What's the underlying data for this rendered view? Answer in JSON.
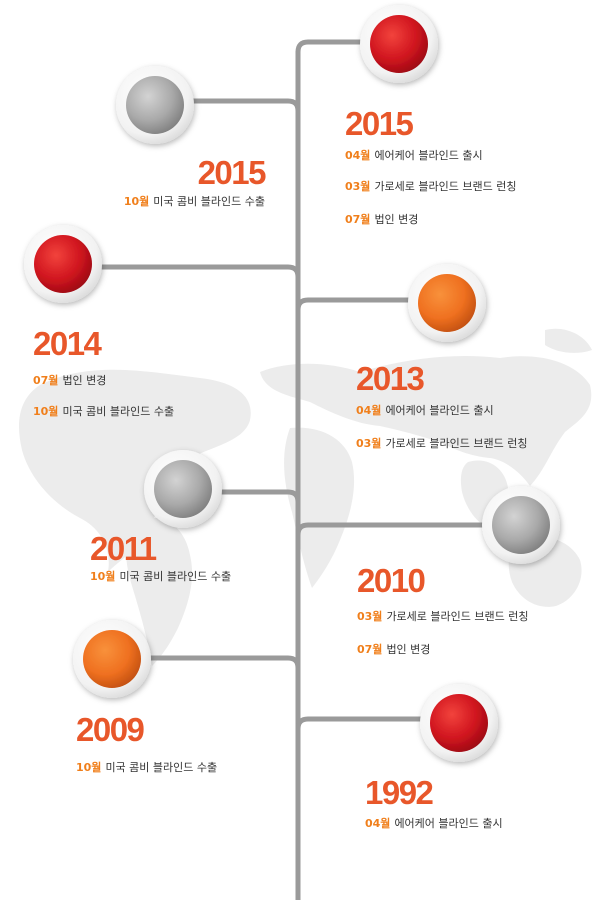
{
  "colors": {
    "accent_text": "#e8572a",
    "month_text": "#f07f1b",
    "line": "#9a9a9a",
    "map": "#ececec",
    "node_red": "#d0151f",
    "node_orange": "#ef7020",
    "node_gray": "#a9a9a9"
  },
  "timeline": [
    {
      "year": "2015",
      "node_color": "red",
      "events": [
        {
          "month": "04월",
          "text": "에어케어 블라인드 출시"
        },
        {
          "month": "03월",
          "text": "가로세로 블라인드 브랜드 런칭"
        },
        {
          "month": "07월",
          "text": "법인 변경"
        }
      ]
    },
    {
      "year": "2015",
      "node_color": "gray",
      "events": [
        {
          "month": "10월",
          "text": "미국 콤비 블라인드 수출"
        }
      ]
    },
    {
      "year": "2014",
      "node_color": "red",
      "events": [
        {
          "month": "07월",
          "text": "법인 변경"
        },
        {
          "month": "10월",
          "text": "미국 콤비 블라인드 수출"
        }
      ]
    },
    {
      "year": "2013",
      "node_color": "orange",
      "events": [
        {
          "month": "04월",
          "text": "에어케어 블라인드 출시"
        },
        {
          "month": "03월",
          "text": "가로세로 블라인드 브랜드 런칭"
        }
      ]
    },
    {
      "year": "2011",
      "node_color": "gray",
      "events": [
        {
          "month": "10월",
          "text": "미국 콤비 블라인드 수출"
        }
      ]
    },
    {
      "year": "2010",
      "node_color": "gray",
      "events": [
        {
          "month": "03월",
          "text": "가로세로 블라인드 브랜드 런칭"
        },
        {
          "month": "07월",
          "text": "법인 변경"
        }
      ]
    },
    {
      "year": "2009",
      "node_color": "orange",
      "events": [
        {
          "month": "10월",
          "text": "미국 콤비 블라인드 수출"
        }
      ]
    },
    {
      "year": "1992",
      "node_color": "red",
      "events": [
        {
          "month": "04월",
          "text": "에어케어 블라인드 출시"
        }
      ]
    }
  ]
}
